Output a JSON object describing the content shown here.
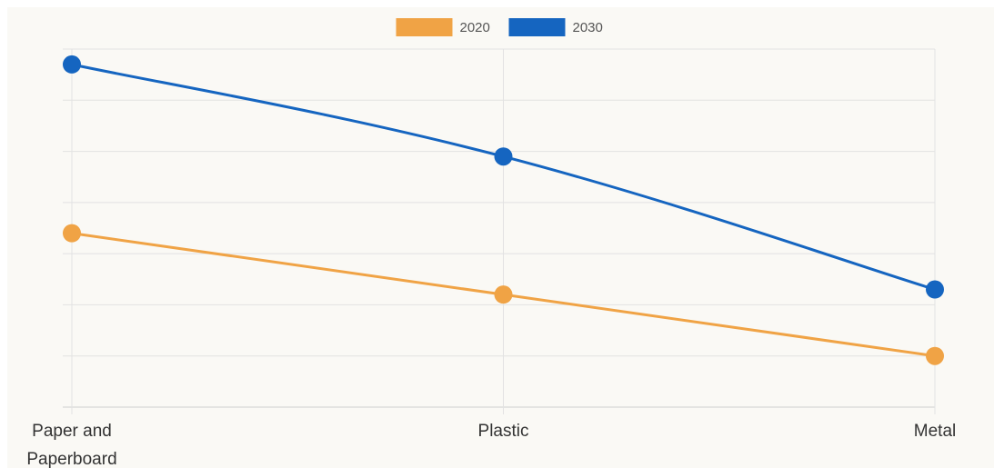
{
  "chart_data": {
    "type": "line",
    "categories": [
      "Paper and Paperboard",
      "Plastic",
      "Metal"
    ],
    "category_lines": [
      [
        "Paper and",
        "Paperboard"
      ],
      [
        "Plastic"
      ],
      [
        "Metal"
      ]
    ],
    "series": [
      {
        "name": "2020",
        "values": [
          3.4,
          2.2,
          1.0
        ],
        "color": "#f0a345"
      },
      {
        "name": "2030",
        "values": [
          6.7,
          4.9,
          2.3
        ],
        "color": "#1565c0"
      }
    ],
    "ylim": [
      0,
      7
    ],
    "y_gridlines": 7,
    "grid": true,
    "legend": "top-center",
    "colors": {
      "grid": "#e2e2e2",
      "axis": "#cfcfcf",
      "background": "#faf9f5"
    }
  }
}
